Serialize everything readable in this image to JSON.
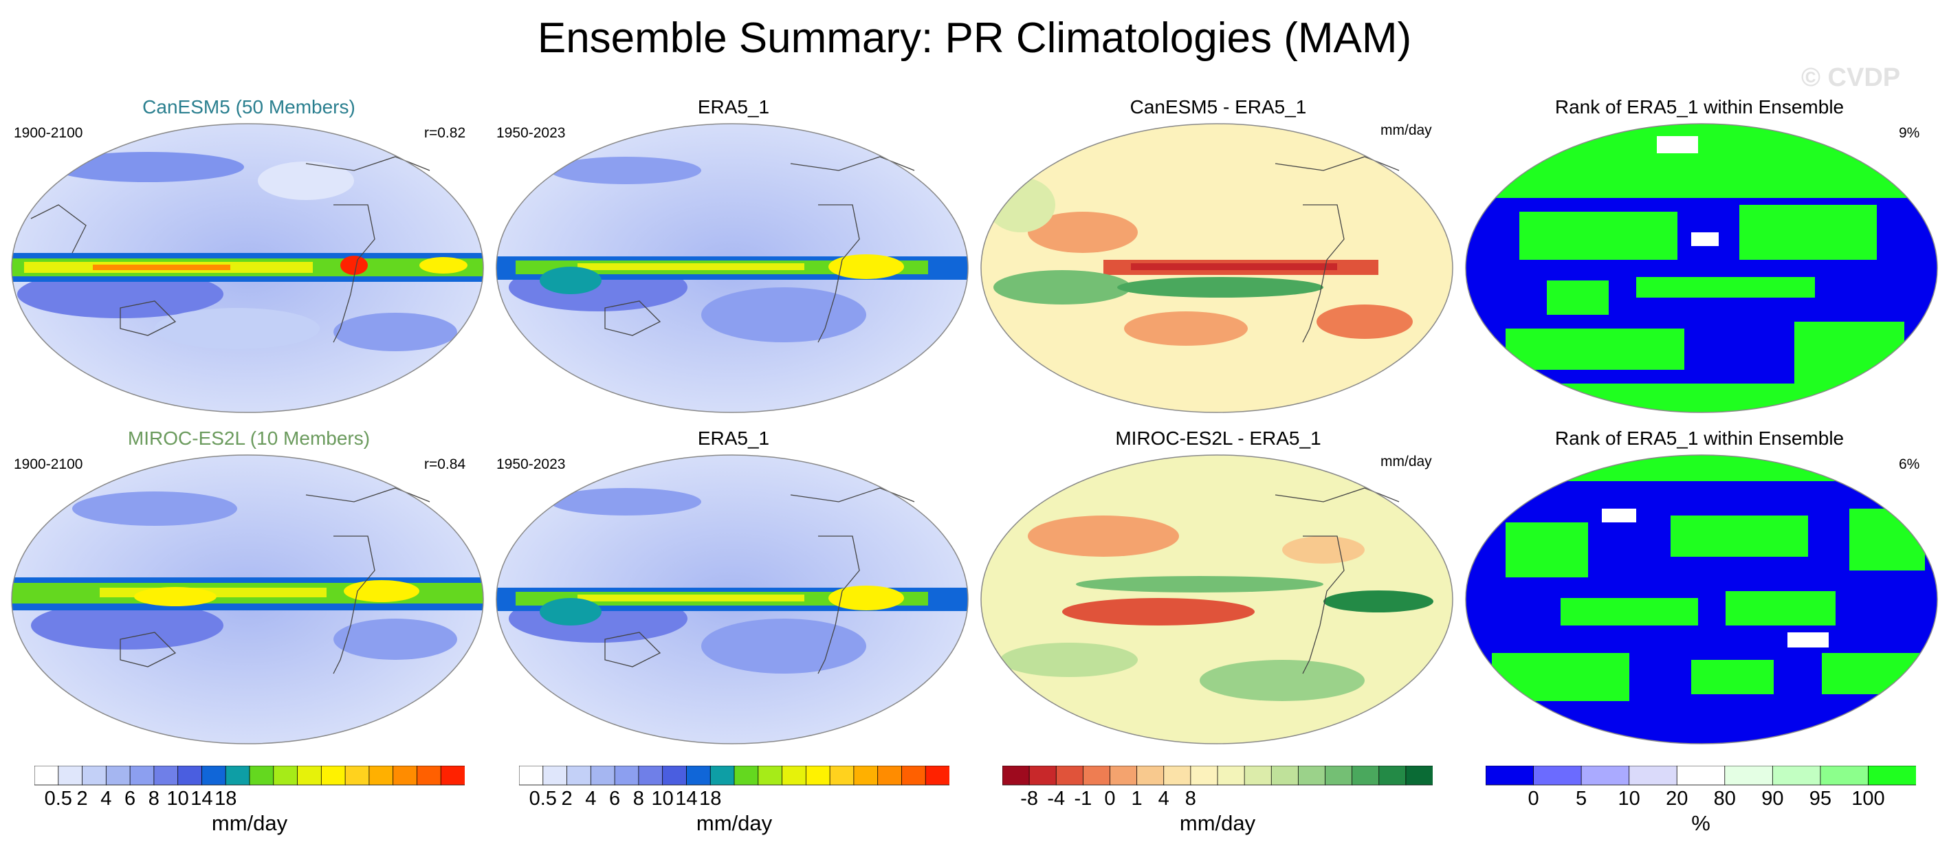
{
  "title": "Ensemble Summary: PR Climatologies (MAM)",
  "watermark": "© CVDP",
  "rows": [
    {
      "model": {
        "title": "CanESM5 (50 Members)",
        "title_color": "#2a7f8f",
        "years": "1900-2100",
        "corr": "r=0.82"
      },
      "obs": {
        "title": "ERA5_1",
        "years": "1950-2023"
      },
      "diff": {
        "title": "CanESM5 - ERA5_1",
        "units": "mm/day"
      },
      "rank": {
        "title": "Rank of ERA5_1 within Ensemble",
        "pct": "9%"
      }
    },
    {
      "model": {
        "title": "MIROC-ES2L (10 Members)",
        "title_color": "#6a9a5c",
        "years": "1900-2100",
        "corr": "r=0.84"
      },
      "obs": {
        "title": "ERA5_1",
        "years": "1950-2023"
      },
      "diff": {
        "title": "MIROC-ES2L - ERA5_1",
        "units": "mm/day"
      },
      "rank": {
        "title": "Rank of ERA5_1 within Ensemble",
        "pct": "6%"
      }
    }
  ],
  "colorbars": {
    "precip": {
      "colors": [
        "#ffffff",
        "#dfe6fb",
        "#c3d0f7",
        "#a5b6f1",
        "#8c9ff0",
        "#6f7fe8",
        "#4a5ee0",
        "#1066d8",
        "#0e9ea5",
        "#64d81f",
        "#a6eb18",
        "#e6f20a",
        "#fff200",
        "#ffd21e",
        "#ffb000",
        "#ff8c00",
        "#ff6000",
        "#ff2200"
      ],
      "ticks": [
        "0.5",
        "2",
        "4",
        "6",
        "8",
        "10",
        "14",
        "18"
      ],
      "units": "mm/day"
    },
    "diff": {
      "colors": [
        "#9e0a1e",
        "#c8282a",
        "#e0533a",
        "#ee7d52",
        "#f4a36e",
        "#f8c98e",
        "#fbe2a8",
        "#fcf2bc",
        "#f3f4b9",
        "#dcecaa",
        "#bfe19a",
        "#9bd28a",
        "#74bf74",
        "#4aa85d",
        "#238a46",
        "#0a6b35"
      ],
      "ticks": [
        "-8",
        "-4",
        "-1",
        "0",
        "1",
        "4",
        "8"
      ],
      "units": "mm/day"
    },
    "rank": {
      "colors": [
        "#0000ee",
        "#6b6bff",
        "#aaaaff",
        "#dadafa",
        "#ffffff",
        "#e4ffe4",
        "#c2ffc2",
        "#8cff8c",
        "#1fff1f"
      ],
      "ticks": [
        "0",
        "5",
        "10",
        "20",
        "80",
        "90",
        "95",
        "100"
      ],
      "units": "%"
    }
  }
}
